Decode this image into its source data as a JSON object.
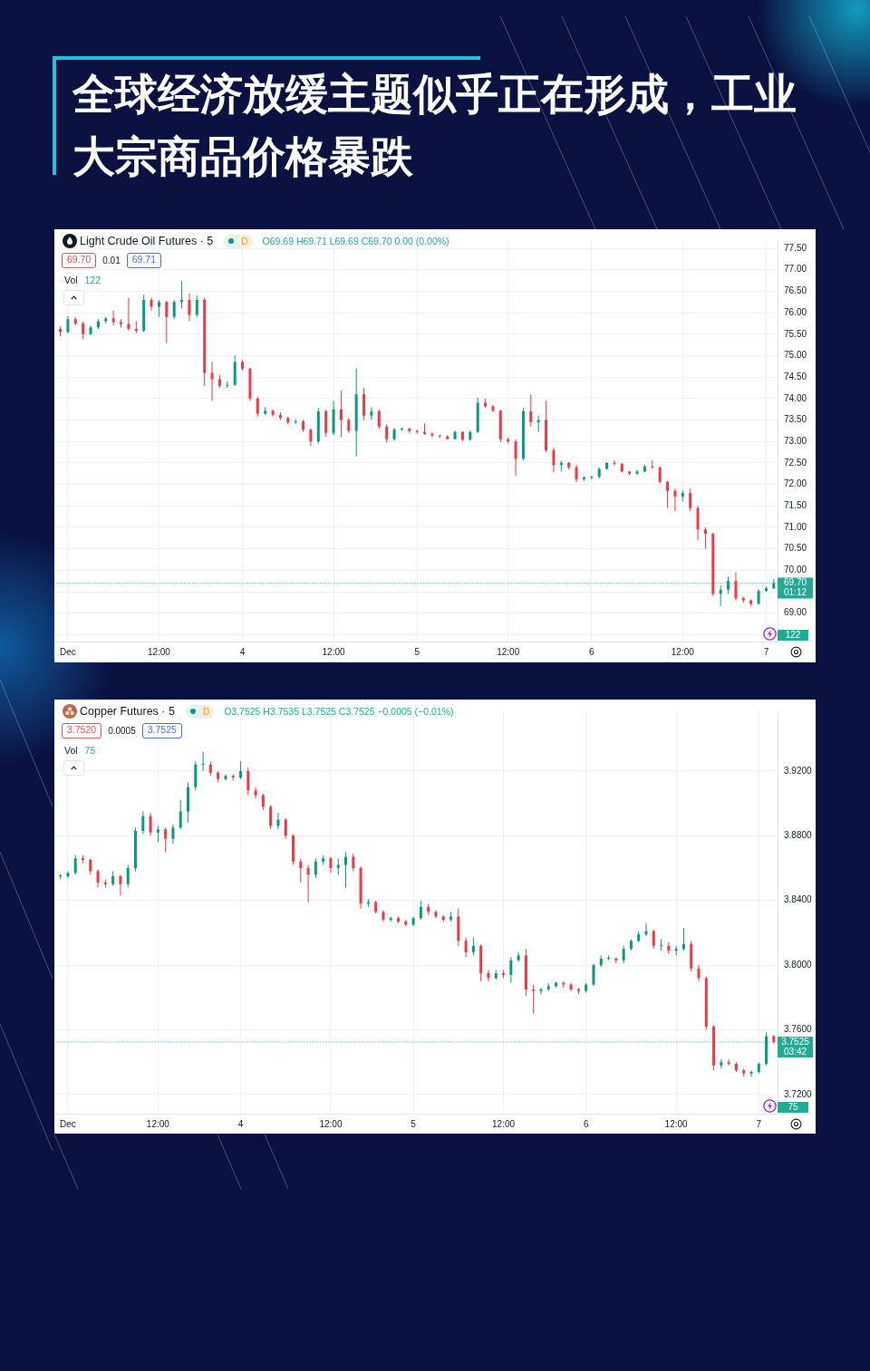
{
  "chart_data": [
    {
      "type": "candlestick",
      "title": "全球经济放缓主题似乎正在形成，工业大宗商品价格暴跌",
      "subtitle": "Light Crude Oil Futures · 5",
      "categories": [
        null,
        "Dec",
        null,
        null,
        null,
        null,
        null,
        null,
        null,
        null,
        null,
        null,
        null,
        "12:00",
        null,
        null,
        null,
        null,
        null,
        null,
        null,
        null,
        null,
        null,
        "4",
        null,
        null,
        null,
        null,
        null,
        null,
        null,
        null,
        null,
        null,
        null,
        "12:00",
        null,
        null,
        null,
        null,
        null,
        null,
        null,
        null,
        null,
        null,
        "5",
        null,
        null,
        null,
        null,
        null,
        null,
        null,
        null,
        null,
        null,
        null,
        "12:00",
        null,
        null,
        null,
        null,
        null,
        null,
        null,
        null,
        null,
        null,
        "6",
        null,
        null,
        null,
        null,
        null,
        null,
        null,
        null,
        null,
        null,
        null,
        "12:00",
        null,
        null,
        null,
        null,
        null,
        null,
        null,
        null,
        null,
        null,
        "7",
        null
      ],
      "ohlc": [
        [
          75.62,
          75.68,
          75.45,
          75.55
        ],
        [
          75.55,
          75.92,
          75.52,
          75.85
        ],
        [
          75.85,
          75.9,
          75.7,
          75.75
        ],
        [
          75.75,
          75.8,
          75.38,
          75.5
        ],
        [
          75.5,
          75.7,
          75.48,
          75.66
        ],
        [
          75.66,
          75.85,
          75.62,
          75.8
        ],
        [
          75.8,
          75.9,
          75.75,
          75.87
        ],
        [
          75.87,
          76.05,
          75.7,
          75.78
        ],
        [
          75.78,
          75.85,
          75.65,
          75.74
        ],
        [
          75.74,
          76.35,
          75.58,
          75.62
        ],
        [
          75.62,
          75.8,
          75.52,
          75.58
        ],
        [
          75.58,
          76.42,
          75.55,
          76.3
        ],
        [
          76.3,
          76.35,
          76.05,
          76.14
        ],
        [
          76.14,
          76.3,
          75.9,
          76.25
        ],
        [
          76.25,
          76.28,
          75.29,
          75.9
        ],
        [
          75.9,
          76.3,
          75.85,
          76.25
        ],
        [
          76.25,
          76.73,
          76.1,
          76.3
        ],
        [
          76.3,
          76.45,
          75.8,
          75.95
        ],
        [
          75.95,
          76.4,
          75.9,
          76.3
        ],
        [
          76.3,
          76.35,
          74.29,
          74.6
        ],
        [
          74.6,
          74.85,
          73.95,
          74.45
        ],
        [
          74.45,
          74.55,
          74.25,
          74.3
        ],
        [
          74.3,
          74.4,
          74.25,
          74.32
        ],
        [
          74.32,
          75.01,
          74.3,
          74.85
        ],
        [
          74.85,
          74.9,
          74.65,
          74.7
        ],
        [
          74.7,
          74.72,
          73.95,
          74.0
        ],
        [
          74.0,
          74.05,
          73.58,
          73.65
        ],
        [
          73.65,
          73.8,
          73.62,
          73.72
        ],
        [
          73.72,
          73.75,
          73.58,
          73.62
        ],
        [
          73.62,
          73.68,
          73.5,
          73.55
        ],
        [
          73.55,
          73.58,
          73.4,
          73.45
        ],
        [
          73.45,
          73.52,
          73.4,
          73.47
        ],
        [
          73.47,
          73.5,
          73.22,
          73.28
        ],
        [
          73.28,
          73.3,
          72.9,
          73.0
        ],
        [
          73.0,
          73.78,
          72.95,
          73.7
        ],
        [
          73.7,
          73.75,
          73.1,
          73.2
        ],
        [
          73.2,
          73.95,
          73.15,
          73.75
        ],
        [
          73.75,
          74.19,
          73.1,
          73.5
        ],
        [
          73.5,
          73.55,
          73.2,
          73.25
        ],
        [
          73.25,
          74.7,
          72.65,
          74.1
        ],
        [
          74.1,
          74.25,
          73.5,
          73.6
        ],
        [
          73.6,
          73.8,
          73.5,
          73.7
        ],
        [
          73.7,
          73.75,
          73.3,
          73.35
        ],
        [
          73.35,
          73.4,
          72.98,
          73.05
        ],
        [
          73.05,
          73.32,
          73.02,
          73.28
        ],
        [
          73.28,
          73.32,
          73.25,
          73.3
        ],
        [
          73.3,
          73.32,
          73.2,
          73.24
        ],
        [
          73.24,
          73.28,
          73.18,
          73.22
        ],
        [
          73.22,
          73.42,
          73.15,
          73.18
        ],
        [
          73.18,
          73.22,
          73.1,
          73.14
        ],
        [
          73.14,
          73.16,
          73.08,
          73.12
        ],
        [
          73.12,
          73.14,
          73.04,
          73.06
        ],
        [
          73.06,
          73.26,
          73.04,
          73.22
        ],
        [
          73.22,
          73.24,
          73.0,
          73.04
        ],
        [
          73.04,
          73.26,
          73.02,
          73.22
        ],
        [
          73.22,
          74.02,
          73.2,
          73.9
        ],
        [
          73.9,
          74.0,
          73.78,
          73.82
        ],
        [
          73.82,
          73.86,
          73.68,
          73.72
        ],
        [
          73.72,
          73.74,
          72.98,
          73.05
        ],
        [
          73.05,
          73.1,
          72.95,
          73.0
        ],
        [
          73.0,
          73.05,
          72.2,
          72.6
        ],
        [
          72.6,
          73.78,
          72.55,
          73.7
        ],
        [
          73.7,
          74.1,
          73.35,
          73.45
        ],
        [
          73.45,
          73.6,
          73.22,
          73.5
        ],
        [
          73.5,
          73.95,
          72.75,
          72.8
        ],
        [
          72.8,
          72.85,
          72.28,
          72.45
        ],
        [
          72.45,
          72.55,
          72.3,
          72.5
        ],
        [
          72.5,
          72.52,
          72.35,
          72.4
        ],
        [
          72.4,
          72.46,
          72.05,
          72.12
        ],
        [
          72.12,
          72.2,
          72.08,
          72.16
        ],
        [
          72.16,
          72.2,
          72.12,
          72.18
        ],
        [
          72.18,
          72.4,
          72.14,
          72.36
        ],
        [
          72.36,
          72.52,
          72.34,
          72.5
        ],
        [
          72.5,
          72.56,
          72.44,
          72.48
        ],
        [
          72.48,
          72.5,
          72.28,
          72.3
        ],
        [
          72.3,
          72.32,
          72.22,
          72.25
        ],
        [
          72.25,
          72.34,
          72.22,
          72.3
        ],
        [
          72.3,
          72.46,
          72.28,
          72.42
        ],
        [
          72.42,
          72.56,
          72.36,
          72.4
        ],
        [
          72.4,
          72.42,
          72.02,
          72.06
        ],
        [
          72.06,
          72.08,
          71.45,
          71.85
        ],
        [
          71.85,
          71.9,
          71.38,
          71.72
        ],
        [
          71.72,
          71.86,
          71.6,
          71.8
        ],
        [
          71.8,
          71.9,
          71.38,
          71.45
        ],
        [
          71.45,
          71.5,
          70.7,
          70.95
        ],
        [
          70.95,
          71.0,
          70.5,
          70.85
        ],
        [
          70.85,
          70.88,
          69.4,
          69.45
        ],
        [
          69.45,
          69.65,
          69.17,
          69.55
        ],
        [
          69.55,
          69.85,
          69.45,
          69.75
        ],
        [
          69.75,
          69.95,
          69.3,
          69.35
        ],
        [
          69.35,
          69.38,
          69.25,
          69.3
        ],
        [
          69.3,
          69.32,
          69.17,
          69.22
        ],
        [
          69.22,
          69.56,
          69.2,
          69.52
        ],
        [
          69.52,
          69.62,
          69.5,
          69.58
        ],
        [
          69.58,
          69.8,
          69.56,
          69.7
        ]
      ],
      "colors": [
        "#f23645",
        "#089981",
        "#f23645",
        "#f23645",
        "#089981",
        "#089981",
        "#089981",
        "#f23645",
        "#f23645",
        "#f23645",
        "#f23645",
        "#089981",
        "#f23645",
        "#089981",
        "#f23645",
        "#089981",
        "#089981",
        "#f23645",
        "#089981",
        "#f23645",
        "#f23645",
        "#f23645",
        "#089981",
        "#089981",
        "#f23645",
        "#f23645",
        "#f23645",
        "#089981",
        "#f23645",
        "#f23645",
        "#f23645",
        "#089981",
        "#f23645",
        "#f23645",
        "#089981",
        "#f23645",
        "#089981",
        "#f23645",
        "#f23645",
        "#089981",
        "#f23645",
        "#089981",
        "#f23645",
        "#f23645",
        "#089981",
        "#089981",
        "#f23645",
        "#f23645",
        "#f23645",
        "#f23645",
        "#f23645",
        "#f23645",
        "#089981",
        "#f23645",
        "#089981",
        "#089981",
        "#f23645",
        "#f23645",
        "#f23645",
        "#f23645",
        "#f23645",
        "#089981",
        "#f23645",
        "#089981",
        "#f23645",
        "#f23645",
        "#089981",
        "#f23645",
        "#f23645",
        "#089981",
        "#089981",
        "#089981",
        "#089981",
        "#f23645",
        "#f23645",
        "#f23645",
        "#089981",
        "#089981",
        "#f23645",
        "#f23645",
        "#f23645",
        "#f23645",
        "#089981",
        "#f23645",
        "#f23645",
        "#f23645",
        "#f23645",
        "#089981",
        "#089981",
        "#f23645",
        "#f23645",
        "#f23645",
        "#089981",
        "#089981",
        "#089981"
      ],
      "ylim": [
        68.34,
        77.67
      ],
      "yticks": [
        {
          "value": 68.5,
          "label": null
        },
        {
          "value": 69,
          "label": "69.00"
        },
        {
          "value": 69.5,
          "label": null
        },
        {
          "value": 70,
          "label": "70.00"
        },
        {
          "value": 70.5,
          "label": "70.50"
        },
        {
          "value": 71,
          "label": "71.00"
        },
        {
          "value": 71.5,
          "label": "71.50"
        },
        {
          "value": 72,
          "label": "72.00"
        },
        {
          "value": 72.5,
          "label": "72.50"
        },
        {
          "value": 73,
          "label": "73.00"
        },
        {
          "value": 73.5,
          "label": "73.50"
        },
        {
          "value": 74,
          "label": "74.00"
        },
        {
          "value": 74.5,
          "label": "74.50"
        },
        {
          "value": 75,
          "label": "75.00"
        },
        {
          "value": 75.5,
          "label": "75.50"
        },
        {
          "value": 76,
          "label": "76.00"
        },
        {
          "value": 76.5,
          "label": "76.50"
        },
        {
          "value": 77,
          "label": "77.00"
        },
        {
          "value": 77.5,
          "label": "77.50"
        }
      ],
      "grid": true,
      "ref_lines": [
        {
          "axis": "y",
          "value": 69.7,
          "label": "69.70\n01:12",
          "color": "#22ab94",
          "line_style": "dotted"
        }
      ],
      "annotations": [
        "D",
        "O69.69 H69.71 L69.69 C69.70 0.00 (0.00%)",
        "69.70",
        "0.01",
        "69.71",
        "Vol",
        "122",
        "122"
      ]
    },
    {
      "type": "candlestick",
      "subtitle": "Copper Futures · 5",
      "categories": [
        null,
        "Dec",
        null,
        null,
        null,
        null,
        null,
        null,
        null,
        null,
        null,
        null,
        null,
        "12:00",
        null,
        null,
        null,
        null,
        null,
        null,
        null,
        null,
        null,
        null,
        "4",
        null,
        null,
        null,
        null,
        null,
        null,
        null,
        null,
        null,
        null,
        null,
        "12:00",
        null,
        null,
        null,
        null,
        null,
        null,
        null,
        null,
        null,
        null,
        "5",
        null,
        null,
        null,
        null,
        null,
        null,
        null,
        null,
        null,
        null,
        null,
        "12:00",
        null,
        null,
        null,
        null,
        null,
        null,
        null,
        null,
        null,
        null,
        "6",
        null,
        null,
        null,
        null,
        null,
        null,
        null,
        null,
        null,
        null,
        null,
        "12:00",
        null,
        null,
        null,
        null,
        null,
        null,
        null,
        null,
        null,
        null,
        "7",
        null,
        null
      ],
      "ohlc": [
        [
          3.855,
          3.856,
          3.853,
          3.855
        ],
        [
          3.855,
          3.858,
          3.854,
          3.857
        ],
        [
          3.857,
          3.868,
          3.856,
          3.866
        ],
        [
          3.866,
          3.868,
          3.863,
          3.865
        ],
        [
          3.865,
          3.866,
          3.856,
          3.858
        ],
        [
          3.858,
          3.859,
          3.848,
          3.851
        ],
        [
          3.851,
          3.853,
          3.848,
          3.85
        ],
        [
          3.85,
          3.858,
          3.849,
          3.855
        ],
        [
          3.855,
          3.856,
          3.843,
          3.85
        ],
        [
          3.85,
          3.862,
          3.848,
          3.86
        ],
        [
          3.86,
          3.885,
          3.858,
          3.883
        ],
        [
          3.883,
          3.895,
          3.881,
          3.892
        ],
        [
          3.892,
          3.894,
          3.88,
          3.882
        ],
        [
          3.882,
          3.886,
          3.876,
          3.884
        ],
        [
          3.884,
          3.885,
          3.87,
          3.878
        ],
        [
          3.878,
          3.887,
          3.875,
          3.885
        ],
        [
          3.885,
          3.902,
          3.884,
          3.895
        ],
        [
          3.895,
          3.913,
          3.888,
          3.91
        ],
        [
          3.91,
          3.926,
          3.908,
          3.924
        ],
        [
          3.924,
          3.932,
          3.92,
          3.924
        ],
        [
          3.924,
          3.926,
          3.917,
          3.919
        ],
        [
          3.919,
          3.92,
          3.913,
          3.915
        ],
        [
          3.915,
          3.918,
          3.914,
          3.917
        ],
        [
          3.917,
          3.918,
          3.914,
          3.916
        ],
        [
          3.916,
          3.926,
          3.915,
          3.92
        ],
        [
          3.92,
          3.922,
          3.905,
          3.908
        ],
        [
          3.908,
          3.91,
          3.903,
          3.905
        ],
        [
          3.905,
          3.906,
          3.896,
          3.898
        ],
        [
          3.898,
          3.899,
          3.884,
          3.886
        ],
        [
          3.886,
          3.894,
          3.884,
          3.89
        ],
        [
          3.89,
          3.891,
          3.878,
          3.88
        ],
        [
          3.88,
          3.881,
          3.862,
          3.864
        ],
        [
          3.864,
          3.866,
          3.851,
          3.86
        ],
        [
          3.86,
          3.862,
          3.839,
          3.856
        ],
        [
          3.856,
          3.866,
          3.854,
          3.864
        ],
        [
          3.864,
          3.868,
          3.862,
          3.866
        ],
        [
          3.866,
          3.867,
          3.857,
          3.86
        ],
        [
          3.86,
          3.866,
          3.856,
          3.862
        ],
        [
          3.862,
          3.87,
          3.848,
          3.867
        ],
        [
          3.867,
          3.869,
          3.858,
          3.86
        ],
        [
          3.86,
          3.861,
          3.835,
          3.838
        ],
        [
          3.838,
          3.841,
          3.836,
          3.839
        ],
        [
          3.839,
          3.84,
          3.832,
          3.833
        ],
        [
          3.833,
          3.834,
          3.827,
          3.828
        ],
        [
          3.828,
          3.83,
          3.827,
          3.829
        ],
        [
          3.829,
          3.83,
          3.826,
          3.827
        ],
        [
          3.827,
          3.828,
          3.824,
          3.825
        ],
        [
          3.825,
          3.83,
          3.824,
          3.829
        ],
        [
          3.829,
          3.84,
          3.828,
          3.836
        ],
        [
          3.836,
          3.838,
          3.831,
          3.833
        ],
        [
          3.833,
          3.834,
          3.829,
          3.83
        ],
        [
          3.83,
          3.831,
          3.827,
          3.828
        ],
        [
          3.828,
          3.833,
          3.827,
          3.83
        ],
        [
          3.83,
          3.835,
          3.812,
          3.815
        ],
        [
          3.815,
          3.817,
          3.805,
          3.808
        ],
        [
          3.808,
          3.817,
          3.806,
          3.812
        ],
        [
          3.812,
          3.813,
          3.79,
          3.795
        ],
        [
          3.795,
          3.797,
          3.79,
          3.792
        ],
        [
          3.792,
          3.797,
          3.791,
          3.795
        ],
        [
          3.795,
          3.797,
          3.792,
          3.794
        ],
        [
          3.794,
          3.805,
          3.789,
          3.803
        ],
        [
          3.803,
          3.808,
          3.802,
          3.806
        ],
        [
          3.806,
          3.81,
          3.781,
          3.785
        ],
        [
          3.785,
          3.788,
          3.77,
          3.784
        ],
        [
          3.784,
          3.786,
          3.782,
          3.785
        ],
        [
          3.785,
          3.789,
          3.784,
          3.787
        ],
        [
          3.787,
          3.79,
          3.786,
          3.789
        ],
        [
          3.789,
          3.79,
          3.786,
          3.788
        ],
        [
          3.788,
          3.789,
          3.784,
          3.785
        ],
        [
          3.785,
          3.786,
          3.782,
          3.784
        ],
        [
          3.784,
          3.789,
          3.783,
          3.788
        ],
        [
          3.788,
          3.801,
          3.787,
          3.8
        ],
        [
          3.8,
          3.806,
          3.799,
          3.804
        ],
        [
          3.804,
          3.806,
          3.803,
          3.804
        ],
        [
          3.804,
          3.805,
          3.801,
          3.803
        ],
        [
          3.803,
          3.812,
          3.801,
          3.81
        ],
        [
          3.81,
          3.816,
          3.809,
          3.815
        ],
        [
          3.815,
          3.821,
          3.814,
          3.819
        ],
        [
          3.819,
          3.826,
          3.818,
          3.821
        ],
        [
          3.821,
          3.822,
          3.81,
          3.812
        ],
        [
          3.812,
          3.816,
          3.809,
          3.812
        ],
        [
          3.812,
          3.814,
          3.807,
          3.809
        ],
        [
          3.809,
          3.812,
          3.806,
          3.81
        ],
        [
          3.81,
          3.823,
          3.809,
          3.813
        ],
        [
          3.813,
          3.815,
          3.796,
          3.798
        ],
        [
          3.798,
          3.8,
          3.79,
          3.792
        ],
        [
          3.792,
          3.793,
          3.76,
          3.762
        ],
        [
          3.762,
          3.763,
          3.735,
          3.738
        ],
        [
          3.738,
          3.742,
          3.736,
          3.74
        ],
        [
          3.74,
          3.742,
          3.738,
          3.739
        ],
        [
          3.739,
          3.74,
          3.734,
          3.735
        ],
        [
          3.735,
          3.736,
          3.731,
          3.733
        ],
        [
          3.733,
          3.735,
          3.731,
          3.734
        ],
        [
          3.734,
          3.74,
          3.733,
          3.739
        ],
        [
          3.739,
          3.7585,
          3.738,
          3.756
        ],
        [
          3.756,
          3.757,
          3.7515,
          3.7525
        ]
      ],
      "colors": [
        "#089981",
        "#089981",
        "#089981",
        "#f23645",
        "#f23645",
        "#f23645",
        "#f23645",
        "#089981",
        "#f23645",
        "#089981",
        "#089981",
        "#089981",
        "#f23645",
        "#089981",
        "#f23645",
        "#089981",
        "#089981",
        "#089981",
        "#089981",
        "#089981",
        "#f23645",
        "#f23645",
        "#089981",
        "#f23645",
        "#089981",
        "#f23645",
        "#f23645",
        "#f23645",
        "#f23645",
        "#089981",
        "#f23645",
        "#f23645",
        "#f23645",
        "#f23645",
        "#089981",
        "#089981",
        "#f23645",
        "#089981",
        "#089981",
        "#f23645",
        "#f23645",
        "#089981",
        "#f23645",
        "#f23645",
        "#089981",
        "#f23645",
        "#f23645",
        "#089981",
        "#089981",
        "#f23645",
        "#f23645",
        "#f23645",
        "#089981",
        "#f23645",
        "#f23645",
        "#089981",
        "#f23645",
        "#f23645",
        "#089981",
        "#f23645",
        "#089981",
        "#089981",
        "#f23645",
        "#f23645",
        "#089981",
        "#089981",
        "#089981",
        "#f23645",
        "#f23645",
        "#f23645",
        "#089981",
        "#089981",
        "#089981",
        "#089981",
        "#f23645",
        "#089981",
        "#089981",
        "#089981",
        "#089981",
        "#f23645",
        "#089981",
        "#f23645",
        "#089981",
        "#089981",
        "#f23645",
        "#f23645",
        "#f23645",
        "#f23645",
        "#089981",
        "#f23645",
        "#f23645",
        "#f23645",
        "#089981",
        "#089981",
        "#089981",
        "#f23645"
      ],
      "ylim": [
        3.7082,
        3.9569
      ],
      "yticks": [
        {
          "value": 3.72,
          "label": "3.7200"
        },
        {
          "value": 3.76,
          "label": "3.7600"
        },
        {
          "value": 3.8,
          "label": "3.8000"
        },
        {
          "value": 3.84,
          "label": "3.8400"
        },
        {
          "value": 3.88,
          "label": "3.8800"
        },
        {
          "value": 3.92,
          "label": "3.9200"
        }
      ],
      "grid": true,
      "ref_lines": [
        {
          "axis": "y",
          "value": 3.7525,
          "label": "3.7525\n03:42",
          "color": "#22ab94",
          "line_style": "dotted"
        }
      ],
      "annotations": [
        "D",
        "O3.7525 H3.7535 L3.7525 C3.7525 −0.0005 (−0.01%)",
        "3.7520",
        "0.0005",
        "3.7525",
        "Vol",
        "75",
        "75"
      ]
    }
  ]
}
